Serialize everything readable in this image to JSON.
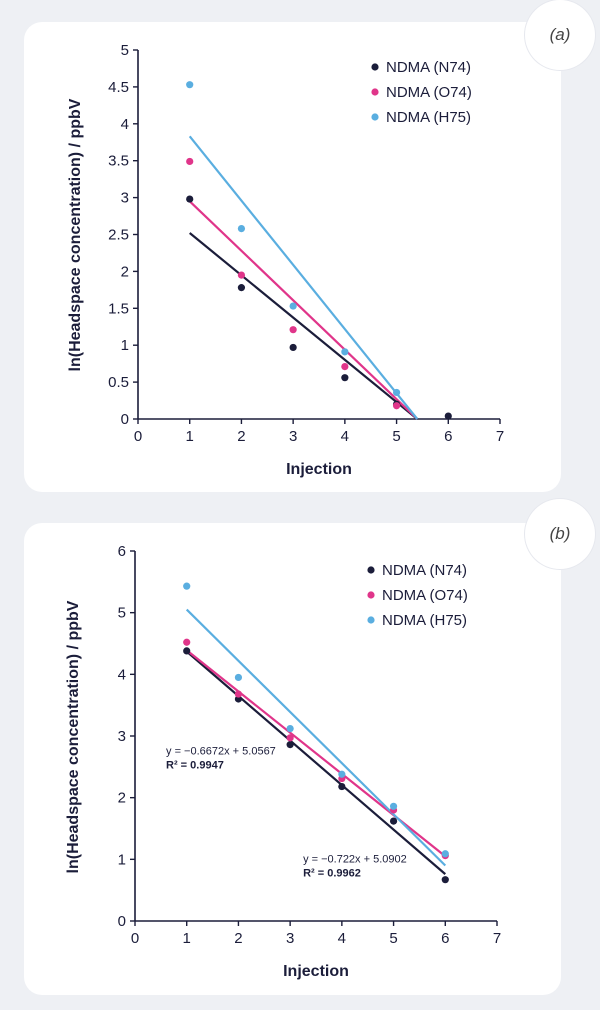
{
  "chart_data": [
    {
      "type": "scatter",
      "id": "a",
      "panel_label": "(a)",
      "xlabel": "Injection",
      "ylabel": "ln(Headspace concentration) / ppbV",
      "xlim": [
        0,
        7
      ],
      "ylim": [
        0,
        5
      ],
      "xticks": [
        "0",
        "1",
        "2",
        "3",
        "4",
        "5",
        "6",
        "7"
      ],
      "yticks": [
        "0",
        "0.5",
        "1",
        "1.5",
        "2",
        "2.5",
        "3",
        "3.5",
        "4",
        "4.5",
        "5"
      ],
      "legend_position": "top-right",
      "series": [
        {
          "name": "NDMA (N74)",
          "color": "#1b1d3a",
          "x": [
            1,
            2,
            3,
            4,
            5,
            6
          ],
          "y": [
            2.98,
            1.78,
            0.97,
            0.56,
            0.2,
            0.04
          ],
          "fit": [
            [
              1,
              2.52
            ],
            [
              5.4,
              0
            ]
          ]
        },
        {
          "name": "NDMA (O74)",
          "color": "#e0358a",
          "x": [
            1,
            2,
            3,
            4,
            5
          ],
          "y": [
            3.49,
            1.95,
            1.21,
            0.71,
            0.18
          ],
          "fit": [
            [
              1,
              2.95
            ],
            [
              5.4,
              0
            ]
          ]
        },
        {
          "name": "NDMA (H75)",
          "color": "#5aaee0",
          "x": [
            1,
            2,
            3,
            4,
            5
          ],
          "y": [
            4.53,
            2.58,
            1.53,
            0.91,
            0.36
          ],
          "fit": [
            [
              1,
              3.83
            ],
            [
              5.4,
              0
            ]
          ]
        }
      ],
      "annotations": []
    },
    {
      "type": "scatter",
      "id": "b",
      "panel_label": "(b)",
      "xlabel": "Injection",
      "ylabel": "ln(Headspace concentration) / ppbV",
      "xlim": [
        0,
        7
      ],
      "ylim": [
        0,
        6
      ],
      "xticks": [
        "0",
        "1",
        "2",
        "3",
        "4",
        "5",
        "6",
        "7"
      ],
      "yticks": [
        "0",
        "1",
        "2",
        "3",
        "4",
        "5",
        "6"
      ],
      "legend_position": "top-right",
      "series": [
        {
          "name": "NDMA (N74)",
          "color": "#1b1d3a",
          "x": [
            1,
            2,
            3,
            4,
            5,
            6
          ],
          "y": [
            4.38,
            3.6,
            2.86,
            2.18,
            1.62,
            0.67
          ],
          "fit": [
            [
              1,
              4.37
            ],
            [
              6,
              0.76
            ]
          ]
        },
        {
          "name": "NDMA (O74)",
          "color": "#e0358a",
          "x": [
            1,
            2,
            3,
            4,
            5,
            6
          ],
          "y": [
            4.52,
            3.68,
            2.97,
            2.31,
            1.8,
            1.06
          ],
          "fit": [
            [
              1,
              4.39
            ],
            [
              6,
              1.05
            ]
          ]
        },
        {
          "name": "NDMA (H75)",
          "color": "#5aaee0",
          "x": [
            1,
            2,
            3,
            4,
            5,
            6
          ],
          "y": [
            5.43,
            3.95,
            3.12,
            2.38,
            1.86,
            1.09
          ],
          "fit": [
            [
              1,
              5.05
            ],
            [
              6,
              0.9
            ]
          ]
        }
      ],
      "annotations": [
        {
          "equation": "y = −0.6672x + 5.0567",
          "r2_label": "R² = ",
          "r2_value": "0.9947",
          "at": [
            0.6,
            2.7
          ]
        },
        {
          "equation": "y = −0.722x + 5.0902",
          "r2_label": "R² = ",
          "r2_value": "0.9962",
          "at": [
            3.25,
            0.95
          ]
        }
      ]
    }
  ]
}
